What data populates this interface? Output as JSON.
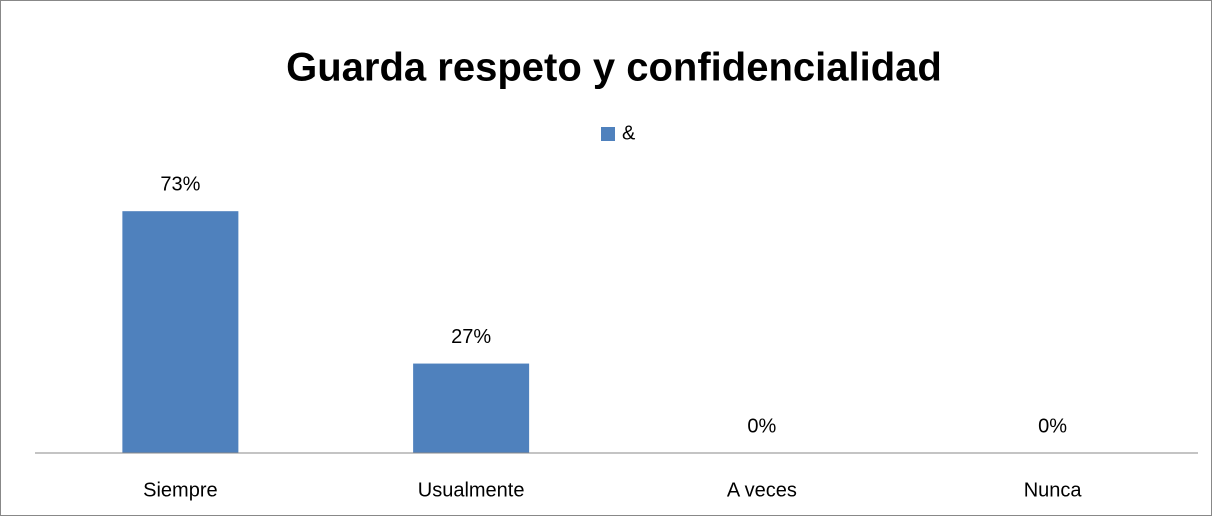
{
  "chart_data": {
    "type": "bar",
    "title": "Guarda respeto y confidencialidad",
    "categories": [
      "Siempre",
      "Usualmente",
      "A veces",
      "Nunca"
    ],
    "series": [
      {
        "name": "&",
        "color": "#4f81bd",
        "values": [
          73,
          27,
          0,
          0
        ],
        "value_labels": [
          "73%",
          "27%",
          "0%",
          "0%"
        ]
      }
    ],
    "ylim": [
      0,
      80
    ],
    "legend": "top"
  }
}
